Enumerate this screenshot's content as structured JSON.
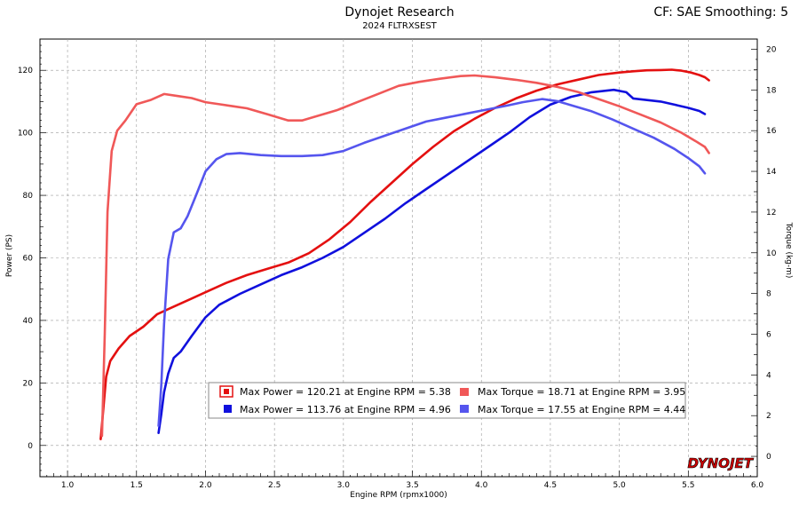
{
  "header": {
    "title": "Dynojet Research",
    "subtitle": "2024 FLTRXSEST",
    "corner": "CF: SAE Smoothing: 5"
  },
  "brand": {
    "logo_text": "DYNOJET",
    "logo_color": "#cc0000"
  },
  "chart_data": {
    "type": "line",
    "xlabel": "Engine RPM (rpmx1000)",
    "ylabel": "Power (PS)",
    "y2label": "Torque (kg-m)",
    "xlim": [
      0.8,
      6.0
    ],
    "ylim": [
      -10,
      130
    ],
    "y2lim": [
      -1,
      20.5
    ],
    "x_ticks": [
      1.0,
      1.5,
      2.0,
      2.5,
      3.0,
      3.5,
      4.0,
      4.5,
      5.0,
      5.5,
      6.0
    ],
    "x_tick_labels": [
      "1.0",
      "1.5",
      "2.0",
      "2.5",
      "3.0",
      "3.5",
      "4.0",
      "4.5",
      "5.0",
      "5.5",
      "6.0"
    ],
    "y_ticks": [
      0,
      20,
      40,
      60,
      80,
      100,
      120
    ],
    "y2_ticks": [
      0,
      2,
      4,
      6,
      8,
      10,
      12,
      14,
      16,
      18,
      20
    ],
    "grid": true,
    "series": [
      {
        "axis": "left",
        "color": "#e41010",
        "x": [
          1.24,
          1.26,
          1.28,
          1.31,
          1.37,
          1.45,
          1.55,
          1.65,
          1.75,
          1.9,
          2.0,
          2.15,
          2.3,
          2.45,
          2.6,
          2.75,
          2.9,
          3.05,
          3.2,
          3.35,
          3.5,
          3.65,
          3.8,
          3.95,
          4.1,
          4.25,
          4.4,
          4.55,
          4.7,
          4.85,
          5.0,
          5.1,
          5.2,
          5.3,
          5.38,
          5.45,
          5.52,
          5.58,
          5.62,
          5.65
        ],
        "y": [
          2,
          12,
          22,
          27,
          31,
          35,
          38,
          42,
          44,
          47,
          49,
          52,
          54.5,
          56.5,
          58.5,
          61.5,
          66,
          71.5,
          78,
          84,
          90,
          95.5,
          100.5,
          104.5,
          108,
          111,
          113.5,
          115.5,
          117,
          118.5,
          119.3,
          119.7,
          120,
          120.1,
          120.21,
          119.9,
          119.3,
          118.5,
          117.8,
          116.8
        ]
      },
      {
        "axis": "left",
        "color": "#1010dd",
        "x": [
          1.66,
          1.68,
          1.7,
          1.73,
          1.77,
          1.82,
          1.9,
          2.0,
          2.1,
          2.25,
          2.4,
          2.55,
          2.7,
          2.85,
          3.0,
          3.15,
          3.3,
          3.45,
          3.6,
          3.75,
          3.9,
          4.05,
          4.2,
          4.35,
          4.5,
          4.65,
          4.8,
          4.96,
          5.05,
          5.1,
          5.2,
          5.3,
          5.4,
          5.5,
          5.58,
          5.62
        ],
        "y": [
          4,
          10,
          17,
          23,
          28,
          30,
          35,
          41,
          45,
          48.5,
          51.5,
          54.5,
          57,
          60,
          63.5,
          68,
          72.5,
          77.5,
          82,
          86.5,
          91,
          95.5,
          100,
          105,
          109,
          111.5,
          113,
          113.76,
          113,
          111,
          110.5,
          110,
          109,
          108,
          107,
          106
        ]
      },
      {
        "axis": "right",
        "color": "#f05858",
        "x": [
          1.25,
          1.27,
          1.29,
          1.32,
          1.36,
          1.42,
          1.5,
          1.6,
          1.7,
          1.8,
          1.9,
          2.0,
          2.1,
          2.2,
          2.3,
          2.45,
          2.6,
          2.7,
          2.8,
          2.95,
          3.1,
          3.25,
          3.4,
          3.55,
          3.7,
          3.85,
          3.95,
          4.1,
          4.25,
          4.4,
          4.55,
          4.7,
          4.85,
          5.0,
          5.15,
          5.3,
          5.45,
          5.55,
          5.62,
          5.65
        ],
        "y": [
          1.0,
          6.0,
          12.0,
          15.0,
          16.0,
          16.5,
          17.3,
          17.5,
          17.8,
          17.7,
          17.6,
          17.4,
          17.3,
          17.2,
          17.1,
          16.8,
          16.5,
          16.5,
          16.7,
          17.0,
          17.4,
          17.8,
          18.2,
          18.4,
          18.55,
          18.68,
          18.71,
          18.62,
          18.5,
          18.35,
          18.15,
          17.9,
          17.55,
          17.2,
          16.8,
          16.4,
          15.9,
          15.5,
          15.2,
          14.9
        ]
      },
      {
        "axis": "right",
        "color": "#5555ee",
        "x": [
          1.66,
          1.68,
          1.7,
          1.73,
          1.77,
          1.82,
          1.87,
          1.93,
          2.0,
          2.08,
          2.15,
          2.25,
          2.4,
          2.55,
          2.7,
          2.85,
          3.0,
          3.15,
          3.3,
          3.45,
          3.6,
          3.75,
          3.9,
          4.05,
          4.2,
          4.3,
          4.44,
          4.55,
          4.65,
          4.8,
          4.95,
          5.1,
          5.25,
          5.4,
          5.5,
          5.58,
          5.62
        ],
        "y": [
          1.5,
          3.5,
          6.5,
          9.7,
          11.0,
          11.2,
          11.8,
          12.8,
          14.0,
          14.6,
          14.85,
          14.9,
          14.8,
          14.75,
          14.75,
          14.8,
          15.0,
          15.4,
          15.75,
          16.1,
          16.45,
          16.65,
          16.85,
          17.05,
          17.25,
          17.4,
          17.55,
          17.45,
          17.25,
          16.95,
          16.55,
          16.1,
          15.65,
          15.1,
          14.65,
          14.25,
          13.9
        ]
      }
    ],
    "legend": [
      {
        "text": "Max Power = 120.21 at Engine RPM = 5.38",
        "color": "#e41010"
      },
      {
        "text": "Max Torque = 18.71 at Engine RPM = 3.95",
        "color": "#f05858"
      },
      {
        "text": "Max Power = 113.76 at Engine RPM = 4.96",
        "color": "#1010dd"
      },
      {
        "text": "Max Torque = 17.55 at Engine RPM = 4.44",
        "color": "#5555ee"
      }
    ]
  }
}
